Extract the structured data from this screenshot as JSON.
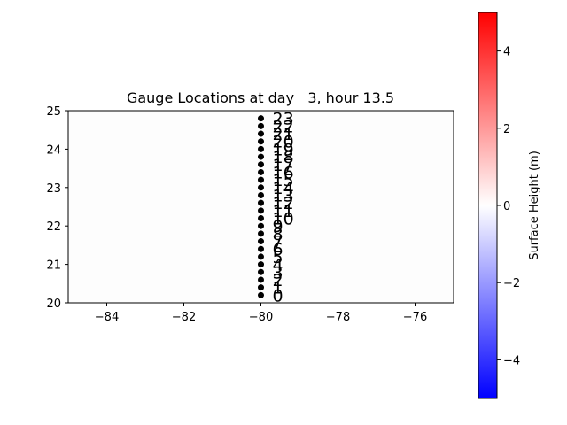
{
  "chart_data": {
    "type": "scatter",
    "title": "Gauge Locations at day   3, hour 13.5",
    "xlim": [
      -85,
      -75
    ],
    "ylim": [
      20,
      25
    ],
    "x_ticks": [
      -84,
      -82,
      -80,
      -78,
      -76
    ],
    "x_tick_labels": [
      "−84",
      "−82",
      "−80",
      "−78",
      "−76"
    ],
    "y_ticks": [
      20,
      21,
      22,
      23,
      24,
      25
    ],
    "y_tick_labels": [
      "20",
      "21",
      "22",
      "23",
      "24",
      "25"
    ],
    "gauges": [
      {
        "label": "0",
        "x": -80,
        "y": 20.2
      },
      {
        "label": "1",
        "x": -80,
        "y": 20.4
      },
      {
        "label": "2",
        "x": -80,
        "y": 20.6
      },
      {
        "label": "3",
        "x": -80,
        "y": 20.8
      },
      {
        "label": "4",
        "x": -80,
        "y": 21.0
      },
      {
        "label": "5",
        "x": -80,
        "y": 21.2
      },
      {
        "label": "6",
        "x": -80,
        "y": 21.4
      },
      {
        "label": "7",
        "x": -80,
        "y": 21.6
      },
      {
        "label": "8",
        "x": -80,
        "y": 21.8
      },
      {
        "label": "9",
        "x": -80,
        "y": 22.0
      },
      {
        "label": "10",
        "x": -80,
        "y": 22.2
      },
      {
        "label": "11",
        "x": -80,
        "y": 22.4
      },
      {
        "label": "12",
        "x": -80,
        "y": 22.6
      },
      {
        "label": "13",
        "x": -80,
        "y": 22.8
      },
      {
        "label": "14",
        "x": -80,
        "y": 23.0
      },
      {
        "label": "15",
        "x": -80,
        "y": 23.2
      },
      {
        "label": "16",
        "x": -80,
        "y": 23.4
      },
      {
        "label": "17",
        "x": -80,
        "y": 23.6
      },
      {
        "label": "18",
        "x": -80,
        "y": 23.8
      },
      {
        "label": "19",
        "x": -80,
        "y": 24.0
      },
      {
        "label": "20",
        "x": -80,
        "y": 24.2
      },
      {
        "label": "21",
        "x": -80,
        "y": 24.4
      },
      {
        "label": "22",
        "x": -80,
        "y": 24.6
      },
      {
        "label": "23",
        "x": -80,
        "y": 24.8
      }
    ],
    "colorbar": {
      "label": "Surface Height (m)",
      "range": [
        -5,
        5
      ],
      "ticks": [
        4,
        2,
        0,
        -2,
        -4
      ],
      "tick_labels": [
        "4",
        "2",
        "0",
        "−2",
        "−4"
      ],
      "colors": {
        "low": "#0000ff",
        "mid": "#ffffff",
        "high": "#ff0000"
      }
    },
    "marker_color": "#000000"
  }
}
